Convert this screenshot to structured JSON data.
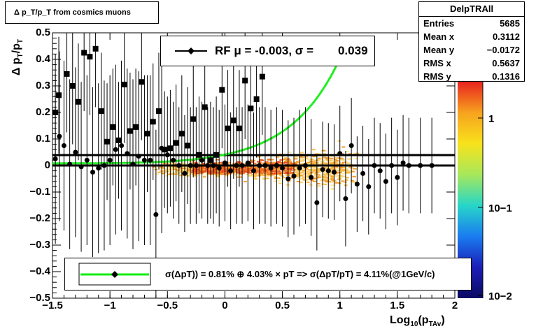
{
  "chart_data": {
    "type": "scatter",
    "title": "Δ p_T/p_T from cosmics muons",
    "xlabel": "Log10(pTAv)",
    "ylabel": "Δ pT/pT",
    "xlim": [
      -1.5,
      2
    ],
    "ylim": [
      -0.5,
      0.5
    ],
    "x_ticks": [
      "−1.5",
      "−1",
      "−0.5",
      "0",
      "0.5",
      "1",
      "1.5",
      "2"
    ],
    "y_ticks": [
      "−0.5",
      "−0.4",
      "−0.3",
      "−0.2",
      "−0.1",
      "0",
      "0.1",
      "0.2",
      "0.3",
      "0.4",
      "0.5"
    ],
    "colorbar": {
      "scale": "log",
      "labels": [
        "1",
        "10−1",
        "10−2"
      ],
      "colors": [
        "#e8231f",
        "#f7a21e",
        "#f8e21c",
        "#a7e85a",
        "#27d6c8",
        "#1a7cf0",
        "#1b1fb8",
        "#0b0a62"
      ]
    },
    "stats": {
      "name": "DelpTRAll",
      "rows": [
        {
          "label": "Entries",
          "value": "5685"
        },
        {
          "label": "Mean x",
          "value": "0.3112"
        },
        {
          "label": "Mean y",
          "value": "−0.0172"
        },
        {
          "label": "RMS x",
          "value": "0.5637"
        },
        {
          "label": "RMS y",
          "value": "0.1316"
        }
      ]
    },
    "rf_legend": {
      "mu_label": "RF μ = -0.003, σ =",
      "sigma_value": "0.039"
    },
    "fit_legend": {
      "text": "σ(ΔpT)) = 0.81% ⊕ 4.03% × pT => σ(ΔpT/pT) = 4.11%(@1GeV/c)"
    },
    "horizontal_lines": [
      0.039,
      0.0,
      -0.003
    ],
    "rms_points": {
      "x": [
        -1.475,
        -1.445,
        -1.375,
        -1.325,
        -1.275,
        -1.225,
        -1.175,
        -1.125,
        -1.075,
        -1.025,
        -0.975,
        -0.925,
        -0.875,
        -0.825,
        -0.775,
        -0.725,
        -0.675,
        -0.625,
        -0.575,
        -0.525,
        -0.475,
        -0.425,
        -0.375,
        -0.325,
        -0.275,
        -0.225,
        -0.175,
        -0.125,
        -0.075,
        -0.025,
        0.025,
        0.075,
        0.125,
        0.175,
        0.225,
        0.275,
        0.325
      ],
      "y": [
        0.2,
        0.265,
        0.345,
        0.3,
        0.24,
        0.425,
        0.41,
        0.44,
        0.205,
        0.09,
        0.145,
        0.095,
        0.305,
        0.13,
        0.145,
        0.315,
        0.12,
        0.165,
        0.205,
        0.06,
        0.065,
        0.085,
        0.12,
        0.075,
        0.175,
        0.04,
        0.22,
        0.02,
        0.04,
        0.285,
        0.14,
        0.17,
        0.14,
        0.32,
        0.215,
        0.25,
        0.335
      ]
    },
    "mean_points": {
      "x": [
        -1.475,
        -1.44,
        -1.4,
        -1.35,
        -1.3,
        -1.25,
        -1.2,
        -1.15,
        -1.1,
        -1.05,
        -1.0,
        -0.95,
        -0.9,
        -0.85,
        -0.8,
        -0.75,
        -0.7,
        -0.65,
        -0.6,
        -0.55,
        -0.5,
        -0.45,
        -0.4,
        -0.35,
        -0.3,
        -0.25,
        -0.2,
        -0.15,
        -0.1,
        -0.05,
        0.0,
        0.05,
        0.1,
        0.15,
        0.2,
        0.25,
        0.3,
        0.35,
        0.4,
        0.45,
        0.5,
        0.55,
        0.6,
        0.65,
        0.7,
        0.75,
        0.8,
        0.85,
        0.9,
        0.95,
        1.0,
        1.05,
        1.1,
        1.15,
        1.2,
        1.25,
        1.3,
        1.35,
        1.4,
        1.45,
        1.5,
        1.55,
        1.6,
        1.7,
        1.8
      ],
      "y": [
        0.025,
        0.11,
        0.075,
        0.005,
        0.05,
        -0.005,
        0.02,
        -0.025,
        -0.01,
        0.0,
        0.02,
        0.06,
        0.075,
        0.045,
        0.005,
        0.035,
        0.02,
        0.02,
        -0.185,
        0.065,
        0.04,
        0.02,
        0.0,
        -0.03,
        0.0,
        0.0,
        0.02,
        0.0,
        0.0,
        -0.01,
        0.01,
        -0.02,
        0.0,
        0.0,
        0.01,
        -0.02,
        0.0,
        0.0,
        -0.01,
        0.0,
        -0.01,
        -0.05,
        -0.04,
        -0.01,
        0.0,
        -0.045,
        -0.14,
        -0.015,
        -0.02,
        -0.025,
        0.045,
        -0.125,
        0.075,
        -0.07,
        -0.03,
        -0.08,
        0.0,
        -0.02,
        -0.06,
        0.0,
        -0.045,
        0.01,
        0.0,
        0.0,
        0.0
      ]
    },
    "fit_curve_params": {
      "a": 0.0081,
      "b": 0.0403
    }
  }
}
